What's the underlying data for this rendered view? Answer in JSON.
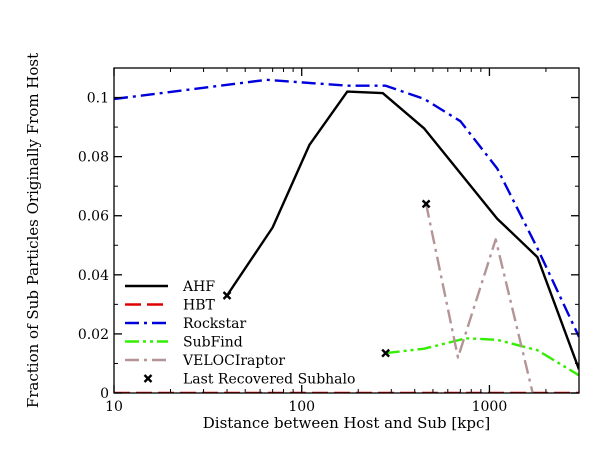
{
  "chart_data": {
    "type": "line",
    "xlabel": "Distance between Host and Sub [kpc]",
    "ylabel": "Fraction of Sub Particles Originally From Host",
    "xscale": "log",
    "xlim": [
      10,
      3000
    ],
    "ylim": [
      0,
      0.11
    ],
    "x_ticks": [
      10,
      100,
      1000
    ],
    "x_tick_labels": [
      "10",
      "100",
      "1000"
    ],
    "y_ticks": [
      0,
      0.02,
      0.04,
      0.06,
      0.08,
      0.1
    ],
    "y_tick_labels": [
      "0",
      "0.02",
      "0.04",
      "0.06",
      "0.08",
      "0.1"
    ],
    "grid": false,
    "legend_position": "lower-left",
    "series": [
      {
        "name": "AHF",
        "color": "#000000",
        "dash": "solid",
        "x": [
          40,
          70,
          110,
          175,
          270,
          450,
          1100,
          1800,
          3000
        ],
        "y": [
          0.033,
          0.056,
          0.084,
          0.102,
          0.1015,
          0.0895,
          0.059,
          0.046,
          0.008
        ]
      },
      {
        "name": "HBT",
        "color": "#dd0000",
        "dash": "dashed",
        "x": [
          10,
          3000
        ],
        "y": [
          0.0,
          0.0
        ]
      },
      {
        "name": "Rockstar",
        "color": "#0000dd",
        "dash": "dashdot",
        "x": [
          10,
          65,
          175,
          280,
          450,
          700,
          1100,
          1800,
          3000
        ],
        "y": [
          0.0995,
          0.106,
          0.104,
          0.104,
          0.0995,
          0.092,
          0.076,
          0.049,
          0.019
        ]
      },
      {
        "name": "SubFind",
        "color": "#33ee00",
        "dash": "dashdotdot",
        "x": [
          280,
          450,
          750,
          1100,
          1800,
          3000
        ],
        "y": [
          0.0135,
          0.015,
          0.0185,
          0.018,
          0.0145,
          0.006
        ]
      },
      {
        "name": "VELOCIraptor",
        "color": "#b49494",
        "dash": "dashdot",
        "x": [
          460,
          680,
          1080,
          1700
        ],
        "y": [
          0.064,
          0.012,
          0.052,
          0.0
        ]
      }
    ],
    "markers": {
      "name": "Last Recovered Subhalo",
      "symbol": "x",
      "x": [
        40,
        280,
        460
      ],
      "y": [
        0.033,
        0.0135,
        0.064
      ]
    }
  }
}
